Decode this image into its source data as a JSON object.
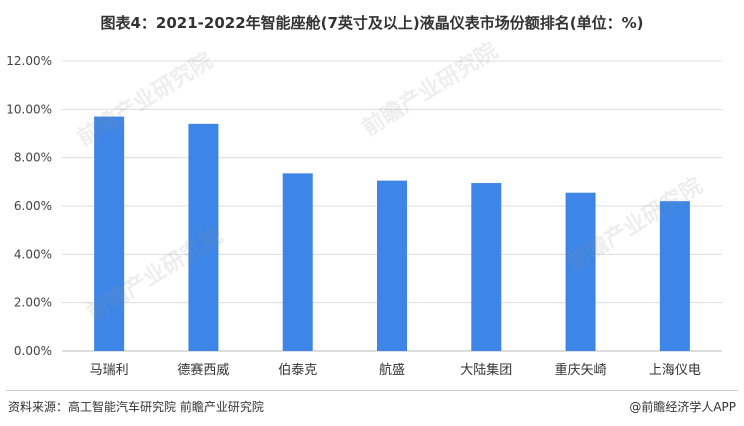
{
  "header": {
    "title": "图表4：2021-2022年智能座舱(7英寸及以上)液晶仪表市场份额排名(单位：%)"
  },
  "footer": {
    "source": "资料来源：高工智能汽车研究院 前瞻产业研究院",
    "brand": "@前瞻经济学人APP"
  },
  "watermark": {
    "text": "前瞻产业研究院"
  },
  "colors": {
    "bar": "#3d85e6",
    "grid": "#dddddd",
    "axis": "#bbbbbb"
  },
  "chart_data": {
    "type": "bar",
    "title": "图表4：2021-2022年智能座舱(7英寸及以上)液晶仪表市场份额排名(单位：%)",
    "categories": [
      "马瑞利",
      "德赛西威",
      "伯泰克",
      "航盛",
      "大陆集团",
      "重庆矢崎",
      "上海仪电"
    ],
    "values": [
      9.7,
      9.4,
      7.35,
      7.05,
      6.95,
      6.55,
      6.2
    ],
    "yticks": [
      "0.00%",
      "2.00%",
      "4.00%",
      "6.00%",
      "8.00%",
      "10.00%",
      "12.00%"
    ],
    "ylim": [
      0,
      12
    ],
    "grid": true,
    "legend": "none"
  }
}
